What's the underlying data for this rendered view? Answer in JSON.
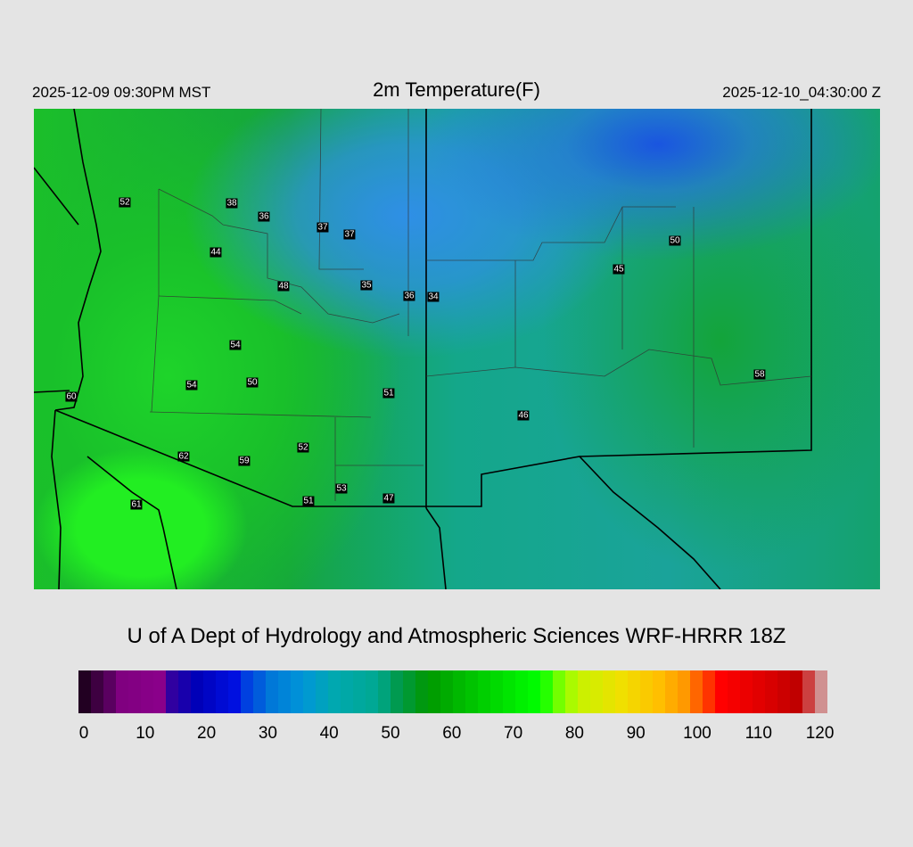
{
  "header": {
    "local_time": "2025-12-09 09:30PM MST",
    "title": "2m Temperature(F)",
    "valid_time": "2025-12-10_04:30:00 Z"
  },
  "stations": [
    "52",
    "38",
    "36",
    "37",
    "37",
    "44",
    "48",
    "35",
    "36",
    "34",
    "50",
    "45",
    "54",
    "54",
    "50",
    "51",
    "60",
    "58",
    "46",
    "52",
    "62",
    "59",
    "53",
    "51",
    "47",
    "61"
  ],
  "credit": "U of A Dept of Hydrology and Atmospheric Sciences WRF-HRRR 18Z",
  "colorbar": {
    "ticks": [
      "0",
      "10",
      "20",
      "30",
      "40",
      "50",
      "60",
      "70",
      "80",
      "90",
      "100",
      "110",
      "120"
    ],
    "stops": [
      [
        0,
        "#220022"
      ],
      [
        4,
        "#5a0060"
      ],
      [
        6,
        "#800080"
      ],
      [
        12,
        "#8a008a"
      ],
      [
        14,
        "#3000a0"
      ],
      [
        18,
        "#0000b8"
      ],
      [
        24,
        "#0010e0"
      ],
      [
        26,
        "#0040e0"
      ],
      [
        30,
        "#0078d8"
      ],
      [
        35,
        "#0096d8"
      ],
      [
        40,
        "#00a8b0"
      ],
      [
        47,
        "#00a890"
      ],
      [
        50,
        "#009a50"
      ],
      [
        55,
        "#009800"
      ],
      [
        60,
        "#00b800"
      ],
      [
        67,
        "#00e000"
      ],
      [
        73,
        "#00ff00"
      ],
      [
        77,
        "#99ff00"
      ],
      [
        80,
        "#ccf000"
      ],
      [
        86,
        "#f0e000"
      ],
      [
        92,
        "#ffbf00"
      ],
      [
        96,
        "#ff9900"
      ],
      [
        100,
        "#ff3300"
      ],
      [
        102,
        "#ff0000"
      ],
      [
        110,
        "#d80000"
      ],
      [
        114,
        "#c00000"
      ],
      [
        116,
        "#cc4040"
      ],
      [
        118,
        "#d09090"
      ],
      [
        120,
        "#d0d0d0"
      ]
    ]
  }
}
